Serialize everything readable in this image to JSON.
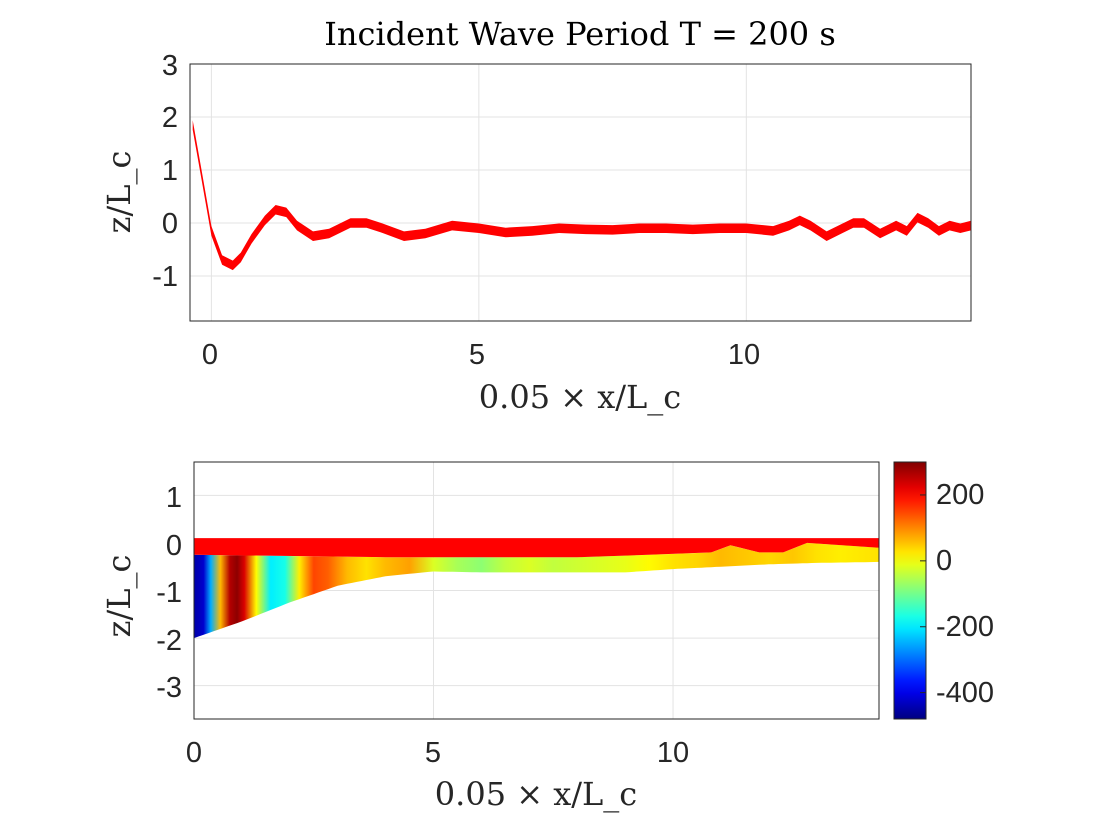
{
  "chart_data": [
    {
      "type": "line",
      "title": "Incident Wave Period T = 200 s",
      "xlabel": "0.05 × x/L_c",
      "ylabel": "z/L_c",
      "xlim": [
        -0.4,
        14.2
      ],
      "ylim": [
        -1.85,
        3
      ],
      "xticks": [
        "0",
        "5",
        "10"
      ],
      "yticks": [
        "-1",
        "0",
        "1",
        "2",
        "3"
      ],
      "grid": true,
      "series": [
        {
          "color": "#ff0000",
          "band_halfwidth": 0.09,
          "x": [
            -0.35,
            -0.2,
            0,
            0.2,
            0.4,
            0.55,
            0.75,
            1.0,
            1.2,
            1.4,
            1.6,
            1.9,
            2.2,
            2.6,
            2.9,
            3.2,
            3.6,
            4.0,
            4.5,
            5.0,
            5.5,
            6.0,
            6.5,
            7.0,
            7.5,
            8.0,
            8.5,
            9.0,
            9.5,
            10.0,
            10.5,
            10.8,
            11.0,
            11.2,
            11.5,
            11.8,
            12.0,
            12.2,
            12.5,
            12.8,
            13.0,
            13.2,
            13.4,
            13.6,
            13.8,
            14.0,
            14.2
          ],
          "y": [
            1.85,
            1.0,
            -0.15,
            -0.7,
            -0.8,
            -0.65,
            -0.3,
            0.05,
            0.25,
            0.2,
            -0.05,
            -0.25,
            -0.2,
            0.0,
            0.0,
            -0.1,
            -0.25,
            -0.2,
            -0.05,
            -0.1,
            -0.18,
            -0.15,
            -0.1,
            -0.12,
            -0.13,
            -0.1,
            -0.1,
            -0.12,
            -0.1,
            -0.1,
            -0.15,
            -0.05,
            0.05,
            -0.05,
            -0.25,
            -0.1,
            0.0,
            0.0,
            -0.2,
            -0.05,
            -0.15,
            0.1,
            0.0,
            -0.15,
            -0.05,
            -0.1,
            -0.05
          ]
        }
      ]
    },
    {
      "type": "heatmap",
      "title": "",
      "xlabel": "0.05 × x/L_c",
      "ylabel": "z/L_c",
      "xlim": [
        0,
        14.3
      ],
      "ylim": [
        -3.7,
        1.7
      ],
      "xticks": [
        "0",
        "5",
        "10"
      ],
      "yticks": [
        "-3",
        "-2",
        "-1",
        "0",
        "1"
      ],
      "grid": true,
      "colormap": "jet",
      "clim": [
        -480,
        300
      ],
      "colorbar_ticks": [
        "200",
        "0",
        "-200",
        "-400"
      ],
      "surface_band": {
        "color": "#ff0000",
        "top": [
          [
            0,
            0.1
          ],
          [
            14.3,
            0.1
          ]
        ],
        "bottom": [
          [
            0,
            -0.25
          ],
          [
            4,
            -0.3
          ],
          [
            8,
            -0.3
          ],
          [
            9.5,
            -0.25
          ],
          [
            10.8,
            -0.2
          ],
          [
            11.2,
            -0.05
          ],
          [
            11.8,
            -0.2
          ],
          [
            12.3,
            -0.2
          ],
          [
            12.8,
            0.0
          ],
          [
            14.3,
            -0.1
          ]
        ]
      },
      "bathymetry": {
        "x": [
          0,
          1,
          2,
          3,
          4,
          5,
          6,
          7,
          8,
          9,
          10,
          11,
          12,
          13,
          14.3
        ],
        "z": [
          -2.0,
          -1.65,
          -1.25,
          -0.9,
          -0.7,
          -0.6,
          -0.62,
          -0.62,
          -0.62,
          -0.62,
          -0.55,
          -0.5,
          -0.45,
          -0.42,
          -0.4
        ]
      },
      "field_profile": {
        "x": [
          0,
          0.2,
          0.35,
          0.55,
          0.75,
          0.9,
          1.05,
          1.3,
          1.6,
          1.9,
          2.2,
          2.5,
          2.8,
          3.2,
          3.6,
          4.0,
          4.5,
          5.0,
          5.5,
          6.0,
          6.5,
          7.0,
          7.5,
          8.0,
          8.5,
          9.0,
          9.5,
          10.0,
          10.5,
          11.0,
          11.5,
          12.0,
          12.5,
          13.0,
          13.5,
          14.3
        ],
        "value": [
          -450,
          -420,
          -250,
          60,
          260,
          290,
          230,
          10,
          -200,
          -170,
          20,
          150,
          130,
          60,
          30,
          60,
          80,
          -20,
          -60,
          -80,
          -40,
          -20,
          -40,
          -30,
          -20,
          -10,
          10,
          30,
          40,
          60,
          50,
          40,
          50,
          30,
          20,
          30
        ]
      }
    }
  ]
}
